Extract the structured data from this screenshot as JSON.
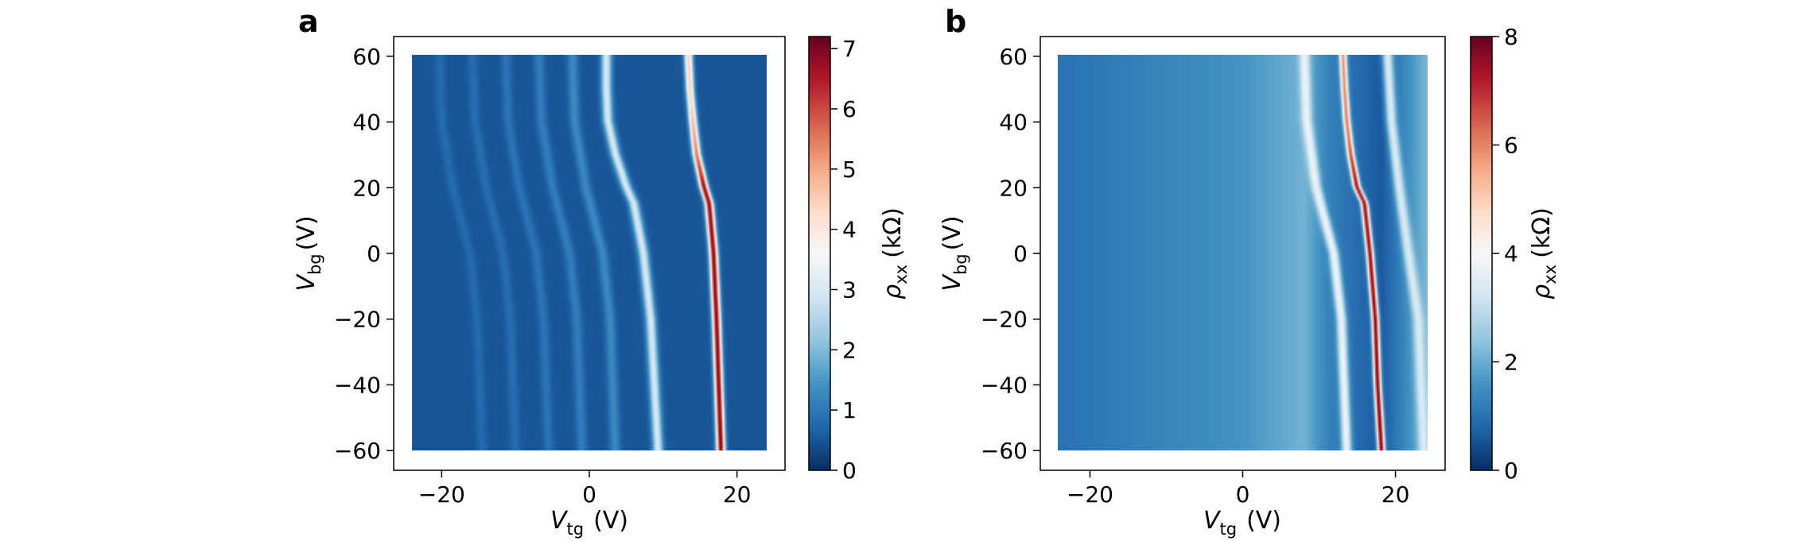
{
  "chart_data": [
    {
      "type": "heatmap",
      "panel_label": "a",
      "xlabel": {
        "symbol": "V",
        "sub": "tg",
        "unit": "(V)"
      },
      "ylabel": {
        "symbol": "V",
        "sub": "bg",
        "unit": "(V)"
      },
      "colorbar_label": {
        "symbol": "ρ",
        "sub": "xx",
        "unit": "(kΩ)"
      },
      "x_range": [
        -24,
        24
      ],
      "y_range": [
        -60,
        60
      ],
      "xlim": [
        -26.5,
        26.5
      ],
      "ylim": [
        -66,
        66
      ],
      "xticks": [
        -20,
        0,
        20
      ],
      "xtick_labels": [
        "−20",
        "0",
        "20"
      ],
      "yticks": [
        -60,
        -40,
        -20,
        0,
        20,
        40,
        60
      ],
      "ytick_labels": [
        "−60",
        "−40",
        "−20",
        "0",
        "20",
        "40",
        "60"
      ],
      "clim": [
        0,
        7.2
      ],
      "cticks": [
        0,
        1,
        2,
        3,
        4,
        5,
        6,
        7
      ],
      "ctick_labels": [
        "0",
        "1",
        "2",
        "3",
        "4",
        "5",
        "6",
        "7"
      ],
      "colormap": "RdBu_r",
      "background_value": 0.5,
      "features": [
        {
          "name": "main-peak",
          "peak_value": 7.0,
          "width_V": 0.55,
          "x_at_vbg": [
            [
              -60,
              17.8
            ],
            [
              -40,
              17.5
            ],
            [
              -20,
              17.2
            ],
            [
              0,
              16.8
            ],
            [
              15,
              16.2
            ],
            [
              20,
              15.5
            ],
            [
              30,
              14.5
            ],
            [
              40,
              14.0
            ],
            [
              50,
              13.6
            ],
            [
              60,
              13.4
            ]
          ],
          "peak_at_vbg": [
            [
              -60,
              7.0
            ],
            [
              20,
              6.8
            ],
            [
              30,
              5.5
            ],
            [
              45,
              4.4
            ],
            [
              60,
              4.5
            ]
          ]
        },
        {
          "name": "ridge-1",
          "peak_value": 3.0,
          "width_V": 0.7,
          "x_at_vbg": [
            [
              -60,
              9.3
            ],
            [
              -40,
              8.8
            ],
            [
              -20,
              8.3
            ],
            [
              0,
              7.3
            ],
            [
              15,
              6.0
            ],
            [
              20,
              5.0
            ],
            [
              30,
              3.5
            ],
            [
              40,
              2.5
            ],
            [
              50,
              2.3
            ],
            [
              60,
              2.3
            ]
          ]
        },
        {
          "name": "ridge-2",
          "peak_value": 1.3,
          "width_V": 0.7,
          "x_at_vbg": [
            [
              -60,
              3.5
            ],
            [
              -20,
              2.8
            ],
            [
              0,
              1.8
            ],
            [
              20,
              -0.5
            ],
            [
              40,
              -2.0
            ],
            [
              60,
              -2.3
            ]
          ]
        },
        {
          "name": "ridge-3",
          "peak_value": 1.1,
          "width_V": 0.7,
          "x_at_vbg": [
            [
              -60,
              -1.0
            ],
            [
              -20,
              -1.7
            ],
            [
              0,
              -2.7
            ],
            [
              20,
              -5.0
            ],
            [
              40,
              -6.5
            ],
            [
              60,
              -6.8
            ]
          ]
        },
        {
          "name": "ridge-4",
          "peak_value": 0.95,
          "width_V": 0.7,
          "x_at_vbg": [
            [
              -60,
              -5.5
            ],
            [
              -20,
              -6.2
            ],
            [
              0,
              -7.2
            ],
            [
              20,
              -9.5
            ],
            [
              40,
              -11.0
            ],
            [
              60,
              -11.3
            ]
          ]
        },
        {
          "name": "ridge-5",
          "peak_value": 0.85,
          "width_V": 0.7,
          "x_at_vbg": [
            [
              -60,
              -10.0
            ],
            [
              -20,
              -10.7
            ],
            [
              0,
              -11.7
            ],
            [
              20,
              -14.0
            ],
            [
              40,
              -15.5
            ],
            [
              60,
              -15.8
            ]
          ]
        },
        {
          "name": "ridge-6",
          "peak_value": 0.8,
          "width_V": 0.7,
          "x_at_vbg": [
            [
              -60,
              -14.5
            ],
            [
              -20,
              -15.2
            ],
            [
              0,
              -16.2
            ],
            [
              20,
              -18.5
            ],
            [
              40,
              -20.0
            ],
            [
              60,
              -20.3
            ]
          ]
        }
      ]
    },
    {
      "type": "heatmap",
      "panel_label": "b",
      "xlabel": {
        "symbol": "V",
        "sub": "tg",
        "unit": "(V)"
      },
      "ylabel": {
        "symbol": "V",
        "sub": "bg",
        "unit": "(V)"
      },
      "colorbar_label": {
        "symbol": "ρ",
        "sub": "xx",
        "unit": "(kΩ)"
      },
      "x_range": [
        -24,
        24
      ],
      "y_range": [
        -60,
        60
      ],
      "xlim": [
        -26.5,
        26.5
      ],
      "ylim": [
        -66,
        66
      ],
      "xticks": [
        -20,
        0,
        20
      ],
      "xtick_labels": [
        "−20",
        "0",
        "20"
      ],
      "yticks": [
        -60,
        -40,
        -20,
        0,
        20,
        40,
        60
      ],
      "ytick_labels": [
        "−60",
        "−40",
        "−20",
        "0",
        "20",
        "40",
        "60"
      ],
      "clim": [
        0,
        8
      ],
      "cticks": [
        0,
        2,
        4,
        6,
        8
      ],
      "ctick_labels": [
        "0",
        "2",
        "4",
        "6",
        "8"
      ],
      "colormap": "RdBu_r",
      "background_gradient": [
        [
          -24,
          1.0
        ],
        [
          0,
          1.6
        ],
        [
          8,
          2.1
        ],
        [
          11,
          1.3
        ],
        [
          18,
          0.6
        ],
        [
          24,
          2.2
        ]
      ],
      "features": [
        {
          "name": "main-peak",
          "peak_value": 7.8,
          "width_V": 0.45,
          "x_at_vbg": [
            [
              -60,
              18.0
            ],
            [
              -40,
              17.5
            ],
            [
              -20,
              17.2
            ],
            [
              0,
              16.5
            ],
            [
              15,
              15.8
            ],
            [
              20,
              14.8
            ],
            [
              30,
              14.0
            ],
            [
              40,
              13.5
            ],
            [
              50,
              13.2
            ],
            [
              60,
              13.0
            ]
          ],
          "peak_at_vbg": [
            [
              -60,
              7.8
            ],
            [
              20,
              7.5
            ],
            [
              35,
              6.2
            ],
            [
              60,
              5.8
            ]
          ]
        },
        {
          "name": "side-ridge-left",
          "peak_value": 3.8,
          "width_V": 0.65,
          "x_at_vbg": [
            [
              -60,
              13.5
            ],
            [
              -20,
              12.8
            ],
            [
              0,
              11.8
            ],
            [
              20,
              9.5
            ],
            [
              40,
              8.3
            ],
            [
              60,
              8.0
            ]
          ]
        },
        {
          "name": "side-ridge-right",
          "peak_value": 3.4,
          "width_V": 0.7,
          "x_at_vbg": [
            [
              -60,
              23.5
            ],
            [
              -20,
              22.8
            ],
            [
              0,
              21.5
            ],
            [
              20,
              20.3
            ],
            [
              40,
              19.3
            ],
            [
              60,
              18.8
            ]
          ]
        }
      ]
    }
  ]
}
